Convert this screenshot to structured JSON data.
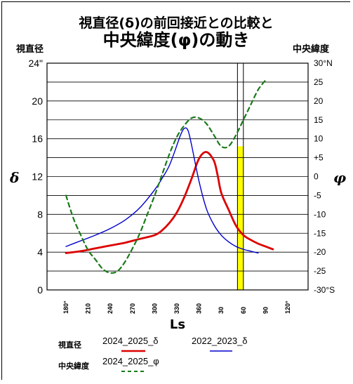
{
  "chart_data": {
    "type": "line",
    "title_line1": "視直径(δ)の前回接近との比較と",
    "title_line2": "中央緯度(φ)の動き",
    "left_axis_title": "視直径",
    "right_axis_title": "中央緯度",
    "left_axis_symbol": "δ",
    "right_axis_symbol": "φ",
    "xlabel": "Ls",
    "grid": true,
    "x_ticks": [
      "180°",
      "210",
      "240",
      "270",
      "300",
      "330",
      "360",
      "30",
      "60",
      "90",
      "120°"
    ],
    "y_left": {
      "ylim": [
        0,
        24
      ],
      "ticks": [
        {
          "value": 0,
          "label": "0"
        },
        {
          "value": 4,
          "label": "4"
        },
        {
          "value": 8,
          "label": "8"
        },
        {
          "value": 12,
          "label": "12"
        },
        {
          "value": 16,
          "label": "16"
        },
        {
          "value": 20,
          "label": "20"
        },
        {
          "value": 24,
          "label": "24\""
        }
      ]
    },
    "y_right": {
      "ylim": [
        -30,
        30
      ],
      "ticks": [
        {
          "value": 30,
          "label": "30°N"
        },
        {
          "value": 25,
          "label": "25"
        },
        {
          "value": 20,
          "label": "20"
        },
        {
          "value": 15,
          "label": "15"
        },
        {
          "value": 10,
          "label": "10"
        },
        {
          "value": 5,
          "label": "+5"
        },
        {
          "value": 0,
          "label": "0"
        },
        {
          "value": -5,
          "label": "-5"
        },
        {
          "value": -10,
          "label": "-10"
        },
        {
          "value": -15,
          "label": "-15"
        },
        {
          "value": -20,
          "label": "-20"
        },
        {
          "value": -25,
          "label": "-25"
        },
        {
          "value": -30,
          "label": "-30°S"
        }
      ]
    },
    "highlight_band": {
      "x_from": 52,
      "x_to": 60,
      "color": "#ffff00"
    },
    "marker_lines_x": [
      52,
      60
    ],
    "series": [
      {
        "name": "2024_2025_δ",
        "axis": "left",
        "color": "#dd0000",
        "dash": "solid",
        "x": [
          180,
          200,
          220,
          240,
          260,
          280,
          300,
          310,
          320,
          330,
          340,
          350,
          360,
          370,
          380,
          385,
          390,
          400,
          410,
          420,
          430,
          440,
          450,
          460
        ],
        "y": [
          3.9,
          4.1,
          4.4,
          4.7,
          5.0,
          5.4,
          5.8,
          6.3,
          7.1,
          8.2,
          9.8,
          11.8,
          13.9,
          14.6,
          13.7,
          12.2,
          10.3,
          8.5,
          6.8,
          5.8,
          5.3,
          4.9,
          4.6,
          4.3
        ]
      },
      {
        "name": "2022_2023_δ",
        "axis": "left",
        "color": "#0000cc",
        "dash": "solid",
        "x": [
          180,
          200,
          220,
          240,
          260,
          280,
          300,
          310,
          320,
          330,
          335,
          340,
          345,
          350,
          360,
          370,
          380,
          390,
          400,
          410,
          420,
          430,
          440
        ],
        "y": [
          4.6,
          5.2,
          5.8,
          6.5,
          7.4,
          8.7,
          10.6,
          11.8,
          13.2,
          15.3,
          16.4,
          17.1,
          16.9,
          15.3,
          11.5,
          8.6,
          6.9,
          5.8,
          5.1,
          4.6,
          4.3,
          4.1,
          3.9
        ]
      },
      {
        "name": "2024_2025_φ",
        "axis": "right",
        "color": "#1a7a1a",
        "dash": "dashed",
        "x": [
          180,
          190,
          200,
          210,
          220,
          230,
          240,
          250,
          260,
          270,
          280,
          290,
          300,
          310,
          320,
          330,
          340,
          350,
          360,
          370,
          380,
          390,
          400,
          410,
          420,
          430,
          440,
          450
        ],
        "y": [
          -5,
          -11,
          -15.5,
          -19.5,
          -22,
          -24.5,
          -25.5,
          -25,
          -22.5,
          -19,
          -15,
          -10,
          -5,
          0.5,
          6,
          10.5,
          13.5,
          15.5,
          15.5,
          14,
          11,
          8,
          8,
          11,
          15,
          19,
          23,
          25.5
        ]
      }
    ],
    "legend": {
      "category_delta": "視直径",
      "category_phi": "中央緯度"
    }
  }
}
